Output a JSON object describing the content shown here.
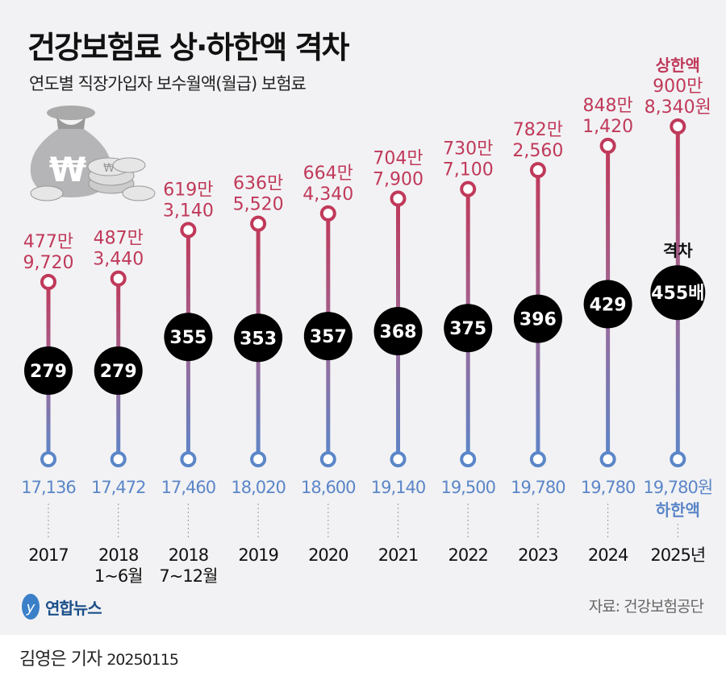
{
  "title": "건강보험료 상·하한액 격차",
  "subtitle": "연도별 직장가입자 보수월액(월급) 보험료",
  "source": "자료: 건강보험공단",
  "logo": "연합뉴스",
  "byline": {
    "author": "김영은 기자",
    "date": "20250115"
  },
  "colors": {
    "upper": "#c0395a",
    "lower": "#5b86c8",
    "gap_circle": "#000000",
    "background": "#f2f2f4"
  },
  "icons": [
    "money-bag-icon",
    "won-coin-icon"
  ],
  "chart_data": {
    "type": "dumbbell",
    "categories": [
      [
        "2017"
      ],
      [
        "2018",
        "1~6월"
      ],
      [
        "2018",
        "7~12월"
      ],
      [
        "2019"
      ],
      [
        "2020"
      ],
      [
        "2021"
      ],
      [
        "2022"
      ],
      [
        "2023"
      ],
      [
        "2024"
      ],
      [
        "2025년"
      ]
    ],
    "series": [
      {
        "name": "상한액",
        "unit": "원",
        "values": [
          4779720,
          4873440,
          6193140,
          6365520,
          6644340,
          7047900,
          7307100,
          7822560,
          8481420,
          9008340
        ]
      },
      {
        "name": "하한액",
        "unit": "원",
        "values": [
          17136,
          17472,
          17460,
          18020,
          18600,
          19140,
          19500,
          19780,
          19780,
          19780
        ]
      },
      {
        "name": "격차",
        "unit": "배",
        "values": [
          279,
          279,
          355,
          353,
          357,
          368,
          375,
          396,
          429,
          455
        ]
      }
    ]
  }
}
